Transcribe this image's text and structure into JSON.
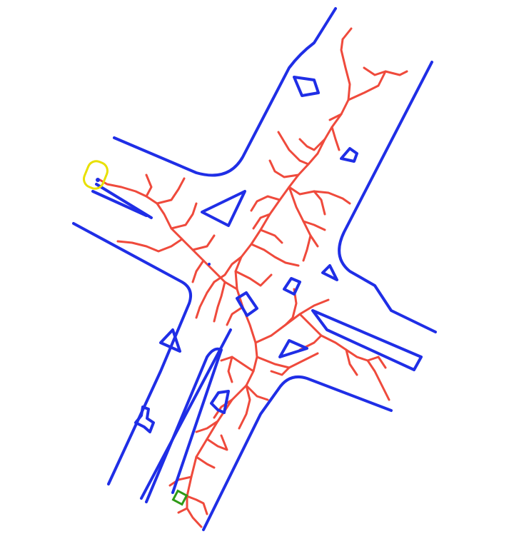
{
  "colors": {
    "background": "#ffffff",
    "road_boundary": "#1f2ee6",
    "obstacle": "#1f2ee6",
    "search_tree": "#ef4a3c",
    "start_marker": "#e8e000",
    "goal_marker": "#2e9a16"
  },
  "legend": []
}
